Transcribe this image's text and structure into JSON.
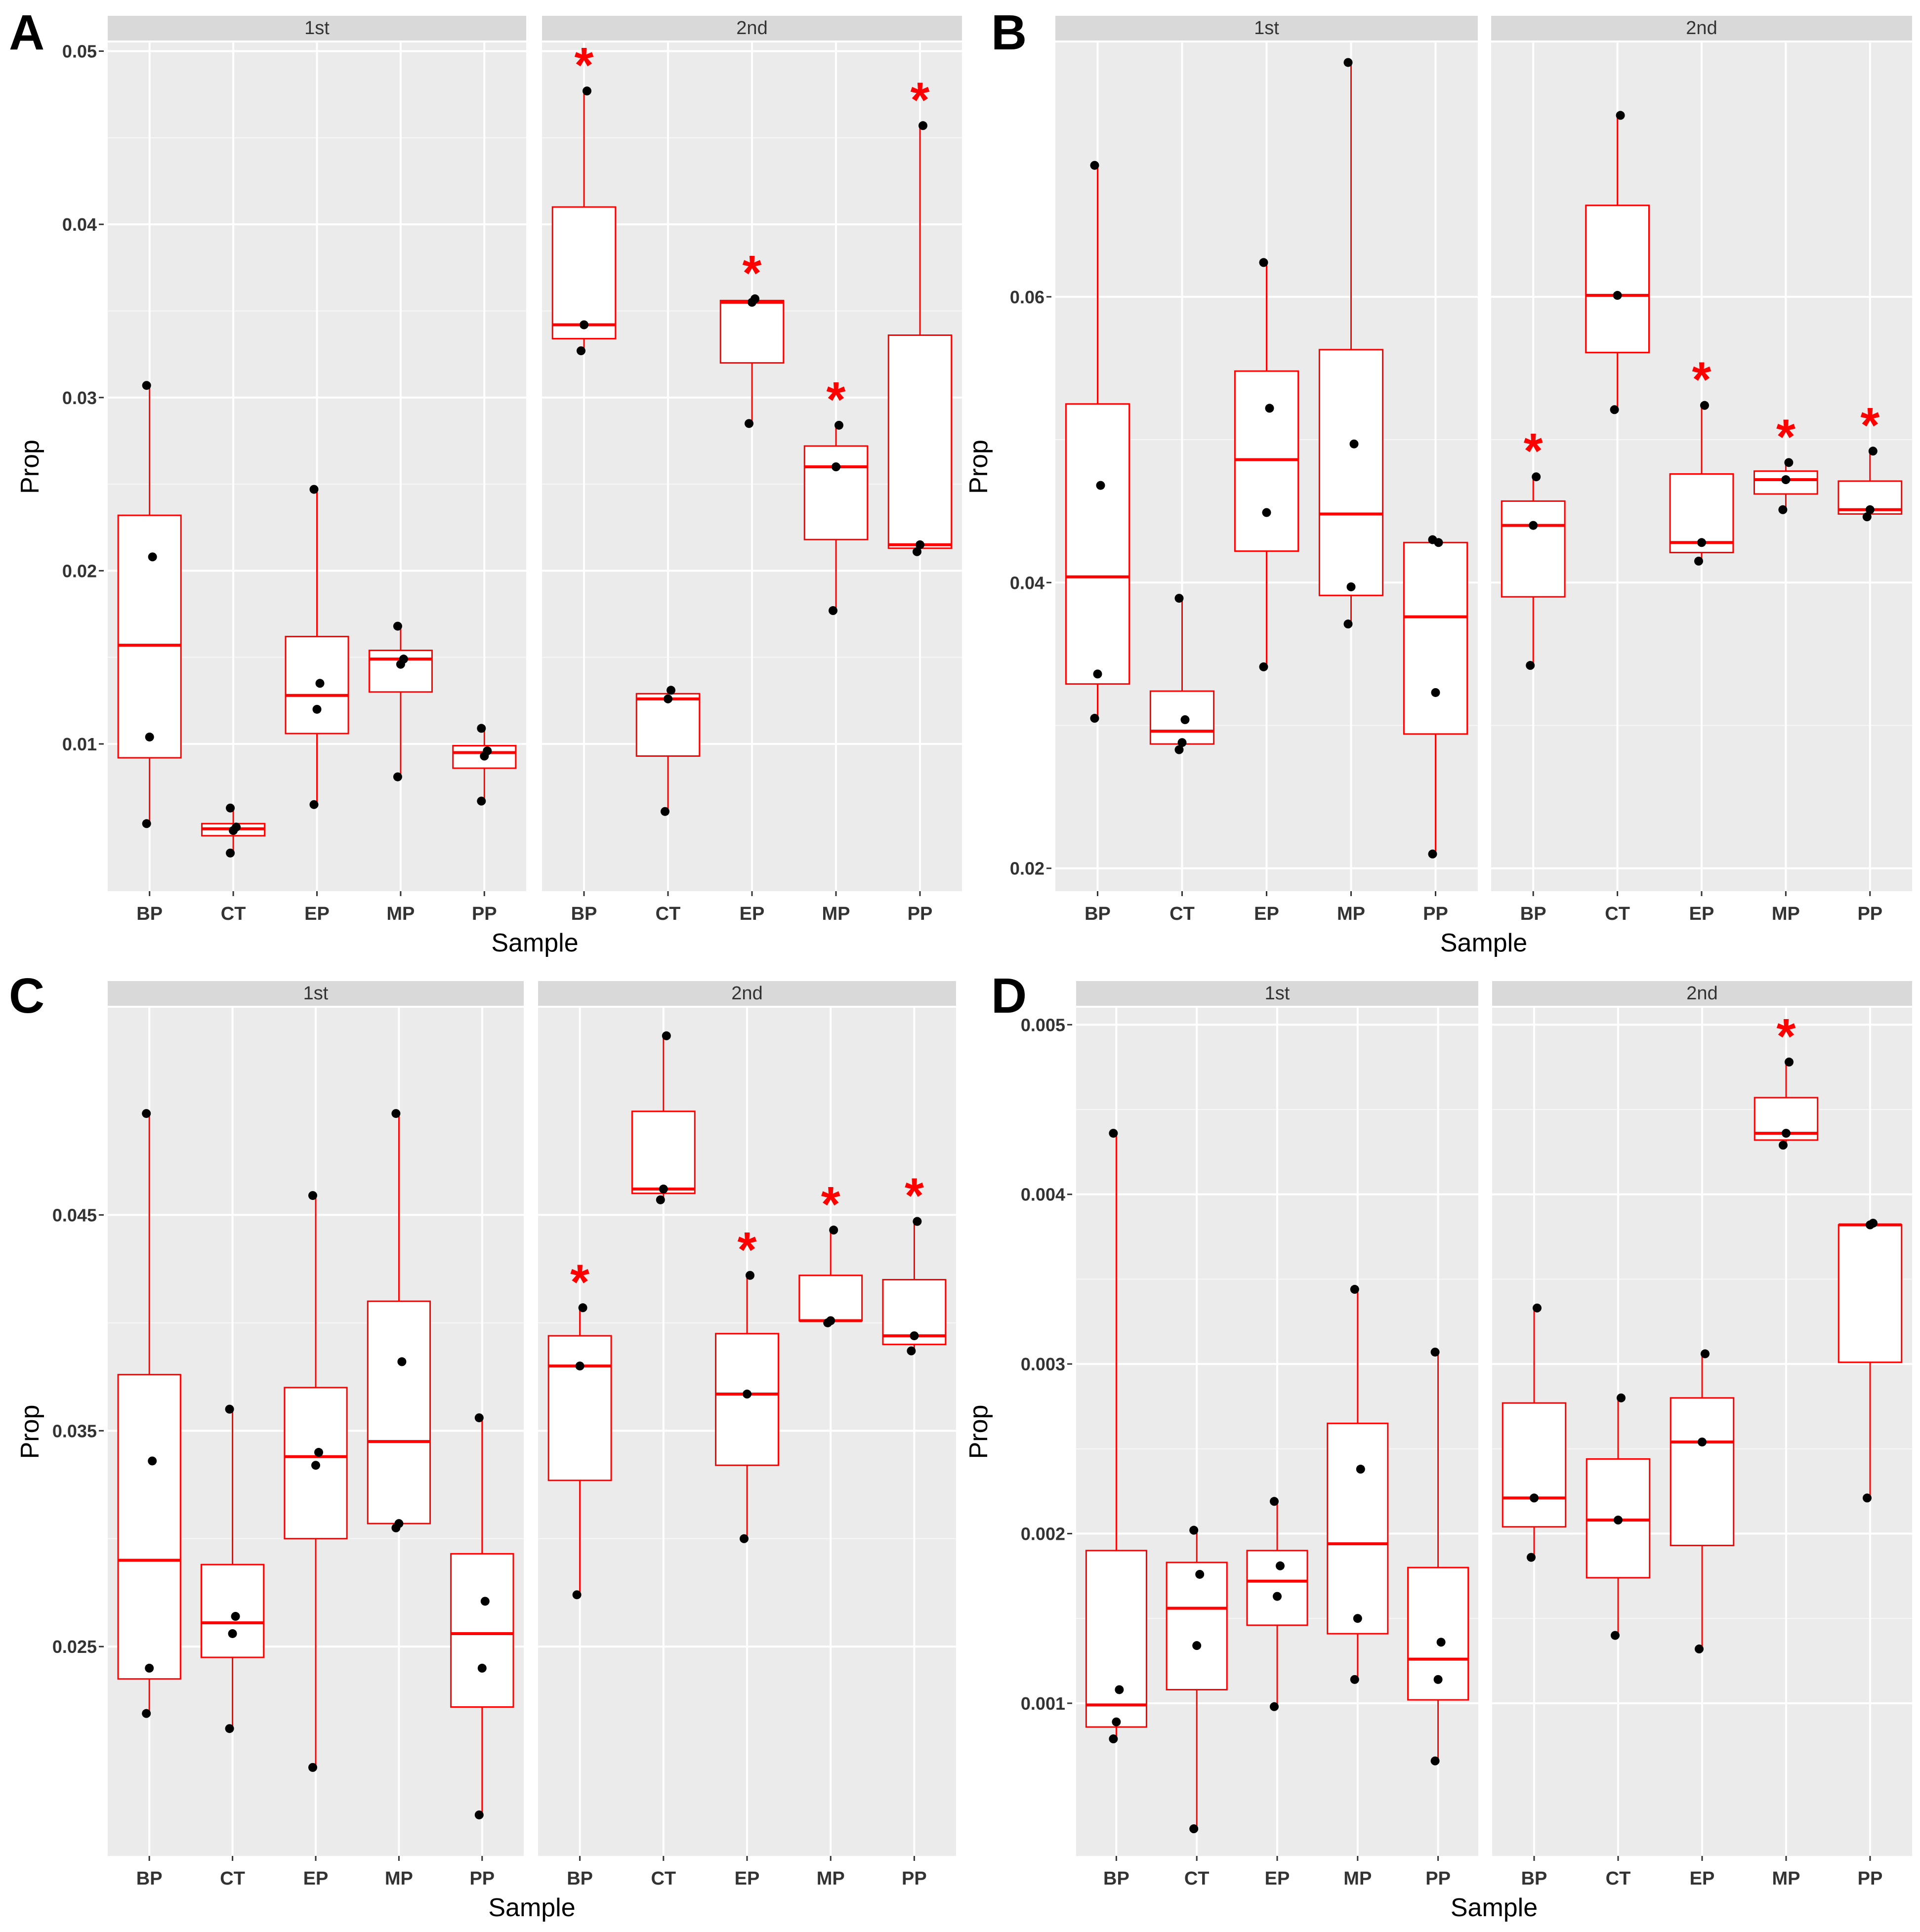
{
  "figure": {
    "style": {
      "panel_bg": "#EBEBEB",
      "strip_bg": "#D9D9D9",
      "grid_color": "#FFFFFF",
      "box_color": "#FF0000",
      "point_color": "#000000",
      "asterisk_color": "#FF0000",
      "text_color": "#333333"
    }
  },
  "chart_data": [
    {
      "type": "box",
      "panel_label": "A",
      "ylabel": "Prop",
      "xlabel": "Sample",
      "categories": [
        "BP",
        "CT",
        "EP",
        "MP",
        "PP"
      ],
      "ylim": [
        0.0015,
        0.0505
      ],
      "yticks": [
        0.01,
        0.02,
        0.03,
        0.04,
        0.05
      ],
      "ytick_labels": [
        "0.01",
        "0.02",
        "0.03",
        "0.04",
        "0.05"
      ],
      "facets": [
        {
          "strip": "1st",
          "boxes": [
            {
              "cat": "BP",
              "min": 0.0054,
              "q1": 0.0092,
              "median": 0.0157,
              "q3": 0.0232,
              "max": 0.0307,
              "points": [
                0.0054,
                0.0104,
                0.0208,
                0.0307
              ]
            },
            {
              "cat": "CT",
              "min": 0.0037,
              "q1": 0.0047,
              "median": 0.0051,
              "q3": 0.0054,
              "max": 0.0063,
              "points": [
                0.0037,
                0.005,
                0.0052,
                0.0063
              ]
            },
            {
              "cat": "EP",
              "min": 0.0065,
              "q1": 0.0106,
              "median": 0.0128,
              "q3": 0.0162,
              "max": 0.0247,
              "points": [
                0.0065,
                0.012,
                0.0135,
                0.0247
              ]
            },
            {
              "cat": "MP",
              "min": 0.0081,
              "q1": 0.013,
              "median": 0.0149,
              "q3": 0.0154,
              "max": 0.0168,
              "points": [
                0.0081,
                0.0146,
                0.0149,
                0.0168
              ]
            },
            {
              "cat": "PP",
              "min": 0.0067,
              "q1": 0.0086,
              "median": 0.0095,
              "q3": 0.0099,
              "max": 0.0109,
              "points": [
                0.0067,
                0.0093,
                0.0096,
                0.0109
              ]
            }
          ]
        },
        {
          "strip": "2nd",
          "boxes": [
            {
              "cat": "BP",
              "min": 0.0327,
              "q1": 0.0334,
              "median": 0.0342,
              "q3": 0.041,
              "max": 0.0477,
              "points": [
                0.0327,
                0.0342,
                0.0477
              ],
              "asterisk": true
            },
            {
              "cat": "CT",
              "min": 0.0061,
              "q1": 0.0093,
              "median": 0.0126,
              "q3": 0.0129,
              "max": 0.0131,
              "points": [
                0.0061,
                0.0126,
                0.0131
              ]
            },
            {
              "cat": "EP",
              "min": 0.0285,
              "q1": 0.032,
              "median": 0.0355,
              "q3": 0.0356,
              "max": 0.0357,
              "points": [
                0.0285,
                0.0355,
                0.0357
              ],
              "asterisk": true
            },
            {
              "cat": "MP",
              "min": 0.0177,
              "q1": 0.0218,
              "median": 0.026,
              "q3": 0.0272,
              "max": 0.0284,
              "points": [
                0.0177,
                0.026,
                0.0284
              ],
              "asterisk": true
            },
            {
              "cat": "PP",
              "min": 0.0211,
              "q1": 0.0213,
              "median": 0.0215,
              "q3": 0.0336,
              "max": 0.0457,
              "points": [
                0.0211,
                0.0215,
                0.0457
              ],
              "asterisk": true
            }
          ]
        }
      ]
    },
    {
      "type": "box",
      "panel_label": "B",
      "ylabel": "Prop",
      "xlabel": "Sample",
      "categories": [
        "BP",
        "CT",
        "EP",
        "MP",
        "PP"
      ],
      "ylim": [
        0.0184,
        0.0778
      ],
      "yticks": [
        0.02,
        0.04,
        0.06
      ],
      "ytick_labels": [
        "0.02",
        "0.04",
        "0.06"
      ],
      "facets": [
        {
          "strip": "1st",
          "boxes": [
            {
              "cat": "BP",
              "min": 0.0305,
              "q1": 0.0329,
              "median": 0.0404,
              "q3": 0.0525,
              "max": 0.0692,
              "points": [
                0.0305,
                0.0336,
                0.0468,
                0.0692
              ]
            },
            {
              "cat": "CT",
              "min": 0.0283,
              "q1": 0.0287,
              "median": 0.0296,
              "q3": 0.0324,
              "max": 0.0389,
              "points": [
                0.0283,
                0.0288,
                0.0304,
                0.0389
              ]
            },
            {
              "cat": "EP",
              "min": 0.0341,
              "q1": 0.0422,
              "median": 0.0486,
              "q3": 0.0548,
              "max": 0.0624,
              "points": [
                0.0341,
                0.0449,
                0.0522,
                0.0624
              ]
            },
            {
              "cat": "MP",
              "min": 0.0371,
              "q1": 0.0391,
              "median": 0.0448,
              "q3": 0.0563,
              "max": 0.0764,
              "points": [
                0.0371,
                0.0397,
                0.0497,
                0.0764
              ]
            },
            {
              "cat": "PP",
              "min": 0.021,
              "q1": 0.0294,
              "median": 0.0376,
              "q3": 0.0428,
              "max": 0.043,
              "points": [
                0.021,
                0.0323,
                0.0428,
                0.043
              ]
            }
          ]
        },
        {
          "strip": "2nd",
          "boxes": [
            {
              "cat": "BP",
              "min": 0.0342,
              "q1": 0.039,
              "median": 0.044,
              "q3": 0.0457,
              "max": 0.0474,
              "points": [
                0.0342,
                0.044,
                0.0474
              ],
              "asterisk": true
            },
            {
              "cat": "CT",
              "min": 0.0521,
              "q1": 0.0561,
              "median": 0.0601,
              "q3": 0.0664,
              "max": 0.0727,
              "points": [
                0.0521,
                0.0601,
                0.0727
              ]
            },
            {
              "cat": "EP",
              "min": 0.0415,
              "q1": 0.0421,
              "median": 0.0428,
              "q3": 0.0476,
              "max": 0.0524,
              "points": [
                0.0415,
                0.0428,
                0.0524
              ],
              "asterisk": true
            },
            {
              "cat": "MP",
              "min": 0.0451,
              "q1": 0.0462,
              "median": 0.0472,
              "q3": 0.0478,
              "max": 0.0484,
              "points": [
                0.0451,
                0.0472,
                0.0484
              ],
              "asterisk": true
            },
            {
              "cat": "PP",
              "min": 0.0446,
              "q1": 0.0448,
              "median": 0.0451,
              "q3": 0.0471,
              "max": 0.0492,
              "points": [
                0.0446,
                0.0451,
                0.0492
              ],
              "asterisk": true
            }
          ]
        }
      ]
    },
    {
      "type": "box",
      "panel_label": "C",
      "ylabel": "Prop",
      "xlabel": "Sample",
      "categories": [
        "BP",
        "CT",
        "EP",
        "MP",
        "PP"
      ],
      "ylim": [
        0.0153,
        0.0546
      ],
      "yticks": [
        0.025,
        0.035,
        0.045
      ],
      "ytick_labels": [
        "0.025",
        "0.035",
        "0.045"
      ],
      "facets": [
        {
          "strip": "1st",
          "boxes": [
            {
              "cat": "BP",
              "min": 0.0219,
              "q1": 0.0235,
              "median": 0.029,
              "q3": 0.0376,
              "max": 0.0497,
              "points": [
                0.0219,
                0.024,
                0.0336,
                0.0497
              ]
            },
            {
              "cat": "CT",
              "min": 0.0212,
              "q1": 0.0245,
              "median": 0.0261,
              "q3": 0.0288,
              "max": 0.036,
              "points": [
                0.0212,
                0.0256,
                0.0264,
                0.036
              ]
            },
            {
              "cat": "EP",
              "min": 0.0194,
              "q1": 0.03,
              "median": 0.0338,
              "q3": 0.037,
              "max": 0.0459,
              "points": [
                0.0194,
                0.0334,
                0.034,
                0.0459
              ]
            },
            {
              "cat": "MP",
              "min": 0.0305,
              "q1": 0.0307,
              "median": 0.0345,
              "q3": 0.041,
              "max": 0.0497,
              "points": [
                0.0305,
                0.0307,
                0.0382,
                0.0497
              ]
            },
            {
              "cat": "PP",
              "min": 0.0172,
              "q1": 0.0222,
              "median": 0.0256,
              "q3": 0.0293,
              "max": 0.0356,
              "points": [
                0.0172,
                0.024,
                0.0271,
                0.0356
              ]
            }
          ]
        },
        {
          "strip": "2nd",
          "boxes": [
            {
              "cat": "BP",
              "min": 0.0274,
              "q1": 0.0327,
              "median": 0.038,
              "q3": 0.0394,
              "max": 0.0407,
              "points": [
                0.0274,
                0.038,
                0.0407
              ],
              "asterisk": true
            },
            {
              "cat": "CT",
              "min": 0.0457,
              "q1": 0.046,
              "median": 0.0462,
              "q3": 0.0498,
              "max": 0.0533,
              "points": [
                0.0457,
                0.0462,
                0.0533
              ]
            },
            {
              "cat": "EP",
              "min": 0.03,
              "q1": 0.0334,
              "median": 0.0367,
              "q3": 0.0395,
              "max": 0.0422,
              "points": [
                0.03,
                0.0367,
                0.0422
              ],
              "asterisk": true
            },
            {
              "cat": "MP",
              "min": 0.04,
              "q1": 0.0401,
              "median": 0.0401,
              "q3": 0.0422,
              "max": 0.0443,
              "points": [
                0.04,
                0.0401,
                0.0443
              ],
              "asterisk": true
            },
            {
              "cat": "PP",
              "min": 0.0387,
              "q1": 0.039,
              "median": 0.0394,
              "q3": 0.042,
              "max": 0.0447,
              "points": [
                0.0387,
                0.0394,
                0.0447
              ],
              "asterisk": true
            }
          ]
        }
      ]
    },
    {
      "type": "box",
      "panel_label": "D",
      "ylabel": "Prop",
      "xlabel": "Sample",
      "categories": [
        "BP",
        "CT",
        "EP",
        "MP",
        "PP"
      ],
      "ylim": [
        0.0001,
        0.0051
      ],
      "yticks": [
        0.001,
        0.002,
        0.003,
        0.004,
        0.005
      ],
      "ytick_labels": [
        "0.001",
        "0.002",
        "0.003",
        "0.004",
        "0.005"
      ],
      "facets": [
        {
          "strip": "1st",
          "boxes": [
            {
              "cat": "BP",
              "min": 0.00079,
              "q1": 0.00086,
              "median": 0.00099,
              "q3": 0.0019,
              "max": 0.00436,
              "points": [
                0.00079,
                0.00089,
                0.00108,
                0.00436
              ]
            },
            {
              "cat": "CT",
              "min": 0.00026,
              "q1": 0.00108,
              "median": 0.00156,
              "q3": 0.00183,
              "max": 0.00202,
              "points": [
                0.00026,
                0.00134,
                0.00176,
                0.00202
              ]
            },
            {
              "cat": "EP",
              "min": 0.00098,
              "q1": 0.00146,
              "median": 0.00172,
              "q3": 0.0019,
              "max": 0.00219,
              "points": [
                0.00098,
                0.00163,
                0.00181,
                0.00219
              ]
            },
            {
              "cat": "MP",
              "min": 0.00114,
              "q1": 0.00141,
              "median": 0.00194,
              "q3": 0.00265,
              "max": 0.00344,
              "points": [
                0.00114,
                0.0015,
                0.00238,
                0.00344
              ]
            },
            {
              "cat": "PP",
              "min": 0.00066,
              "q1": 0.00102,
              "median": 0.00126,
              "q3": 0.0018,
              "max": 0.00307,
              "points": [
                0.00066,
                0.00114,
                0.00136,
                0.00307
              ]
            }
          ]
        },
        {
          "strip": "2nd",
          "boxes": [
            {
              "cat": "BP",
              "min": 0.00186,
              "q1": 0.00204,
              "median": 0.00221,
              "q3": 0.00277,
              "max": 0.00333,
              "points": [
                0.00186,
                0.00221,
                0.00333
              ]
            },
            {
              "cat": "CT",
              "min": 0.0014,
              "q1": 0.00174,
              "median": 0.00208,
              "q3": 0.00244,
              "max": 0.0028,
              "points": [
                0.0014,
                0.00208,
                0.0028
              ]
            },
            {
              "cat": "EP",
              "min": 0.00132,
              "q1": 0.00193,
              "median": 0.00254,
              "q3": 0.0028,
              "max": 0.00306,
              "points": [
                0.00132,
                0.00254,
                0.00306
              ]
            },
            {
              "cat": "MP",
              "min": 0.00429,
              "q1": 0.00432,
              "median": 0.00436,
              "q3": 0.00457,
              "max": 0.00478,
              "points": [
                0.00429,
                0.00436,
                0.00478
              ],
              "asterisk": true
            },
            {
              "cat": "PP",
              "min": 0.00221,
              "q1": 0.00301,
              "median": 0.00382,
              "q3": 0.00382,
              "max": 0.00383,
              "points": [
                0.00221,
                0.00382,
                0.00383
              ]
            }
          ]
        }
      ]
    }
  ]
}
